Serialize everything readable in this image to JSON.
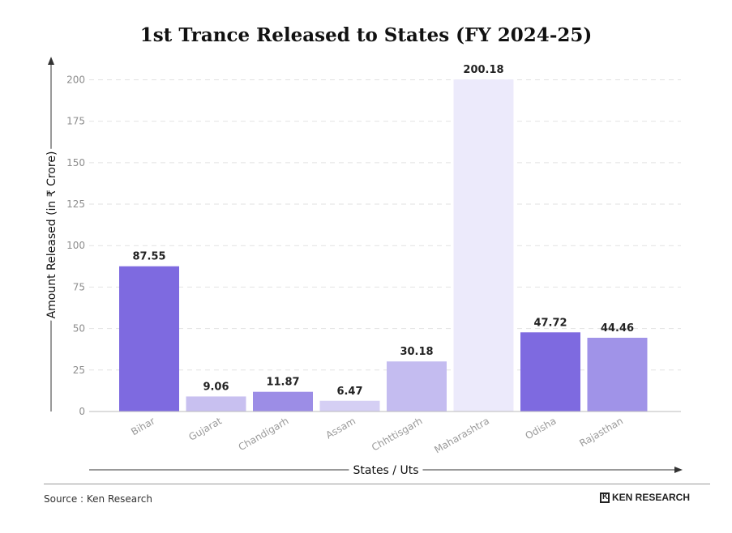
{
  "chart_data": {
    "type": "bar",
    "title": "1st Trance Released to States (FY 2024-25)",
    "xlabel": "States / Uts",
    "ylabel": "Amount Released (in ₹ Crore)",
    "categories": [
      "Bihar",
      "Gujarat",
      "Chandigarh",
      "Assam",
      "Chhttisgarh",
      "Maharashtra",
      "Odisha",
      "Rajasthan"
    ],
    "values": [
      87.55,
      9.06,
      11.87,
      6.47,
      30.18,
      200.18,
      47.72,
      44.46
    ],
    "value_labels": [
      "87.55",
      "9.06",
      "11.87",
      "6.47",
      "30.18",
      "200.18",
      "47.72",
      "44.46"
    ],
    "bar_colors": [
      "#7e6ae0",
      "#c8c0f0",
      "#9c8de6",
      "#d5cff4",
      "#c4bcf0",
      "#eceafb",
      "#7e6ae0",
      "#a093e8"
    ],
    "ylim": [
      0,
      210
    ],
    "yticks": [
      0,
      25,
      50,
      75,
      100,
      125,
      150,
      175,
      200
    ],
    "grid": true
  },
  "footer": {
    "source": "Source : Ken Research",
    "brand": "KEN RESEARCH"
  }
}
